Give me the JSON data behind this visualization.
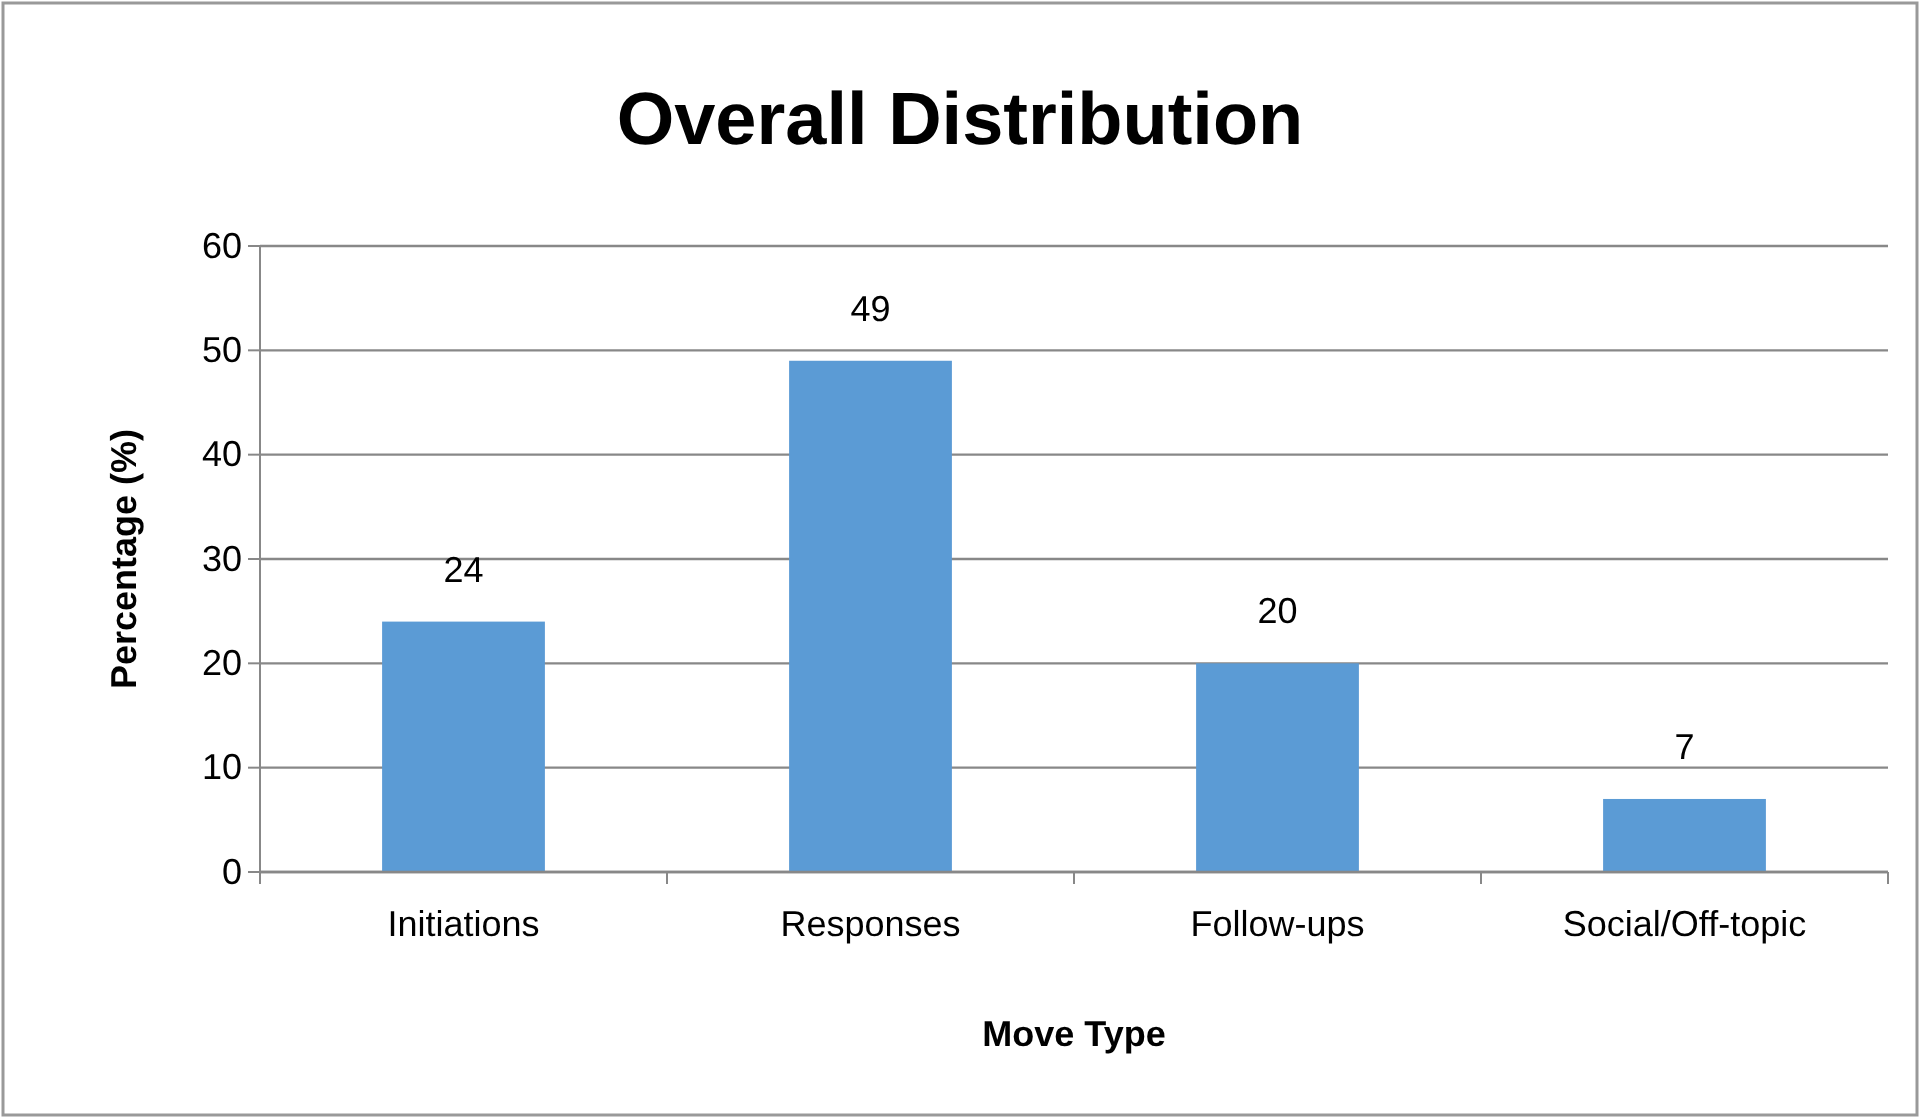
{
  "chart_data": {
    "type": "bar",
    "title": "Overall Distribution",
    "xlabel": "Move Type",
    "ylabel": "Percentage (%)",
    "categories": [
      "Initiations",
      "Responses",
      "Follow-ups",
      "Social/Off-topic"
    ],
    "values": [
      24,
      49,
      20,
      7
    ],
    "color": "#5b9bd5",
    "ylim": [
      0,
      60
    ],
    "yticks": [
      0,
      10,
      20,
      30,
      40,
      50,
      60
    ],
    "grid": "y",
    "data_labels": true
  }
}
